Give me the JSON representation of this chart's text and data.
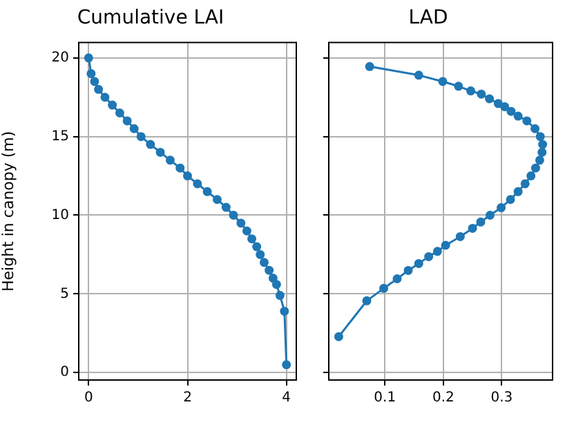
{
  "chart_data": [
    {
      "type": "line",
      "title": "Cumulative LAI",
      "ylabel": "Height in canopy (m)",
      "xlim": [
        -0.2,
        4.2
      ],
      "xticks": [
        0,
        2,
        4
      ],
      "ylim": [
        -0.475,
        20.975
      ],
      "yticks": [
        0,
        5,
        10,
        15,
        20
      ],
      "grid": true,
      "marker": "circle",
      "line_style": "solid",
      "series": [
        {
          "color": "#1f77b4",
          "x": [
            0,
            0.05,
            0.12,
            0.2,
            0.33,
            0.48,
            0.63,
            0.78,
            0.92,
            1.06,
            1.25,
            1.45,
            1.65,
            1.85,
            2.0,
            2.2,
            2.4,
            2.6,
            2.78,
            2.93,
            3.08,
            3.2,
            3.3,
            3.4,
            3.47,
            3.55,
            3.65,
            3.73,
            3.8,
            3.87,
            3.96,
            4.0
          ],
          "values": [
            20,
            19,
            18.5,
            18,
            17.5,
            17,
            16.5,
            16,
            15.5,
            15,
            14.5,
            14,
            13.5,
            13,
            12.5,
            12,
            11.5,
            11,
            10.5,
            10,
            9.5,
            9,
            8.5,
            8,
            7.5,
            7,
            6.5,
            6,
            5.6,
            4.9,
            3.9,
            0.5
          ]
        }
      ]
    },
    {
      "type": "line",
      "title": "LAD",
      "xlim": [
        0.004,
        0.387
      ],
      "xticks": [
        0.1,
        0.2,
        0.3
      ],
      "ylim": [
        -0.475,
        20.975
      ],
      "yticks": [
        0,
        5,
        10,
        15,
        20
      ],
      "tick_labels": "x",
      "grid": true,
      "marker": "circle",
      "line_style": "solid",
      "series": [
        {
          "color": "#1f77b4",
          "x": [
            0.074,
            0.158,
            0.199,
            0.226,
            0.247,
            0.265,
            0.279,
            0.294,
            0.305,
            0.316,
            0.328,
            0.343,
            0.357,
            0.366,
            0.37,
            0.369,
            0.365,
            0.358,
            0.35,
            0.34,
            0.328,
            0.315,
            0.299,
            0.28,
            0.264,
            0.25,
            0.229,
            0.204,
            0.19,
            0.175,
            0.158,
            0.14,
            0.121,
            0.098,
            0.069,
            0.021
          ],
          "values": [
            19.45,
            18.9,
            18.5,
            18.2,
            17.9,
            17.7,
            17.4,
            17.1,
            16.9,
            16.6,
            16.3,
            16,
            15.5,
            15,
            14.5,
            14,
            13.5,
            13,
            12.5,
            12,
            11.5,
            11,
            10.48,
            10,
            9.57,
            9.17,
            8.64,
            8.09,
            7.7,
            7.37,
            6.93,
            6.49,
            5.96,
            5.35,
            4.56,
            2.28
          ]
        }
      ]
    }
  ]
}
